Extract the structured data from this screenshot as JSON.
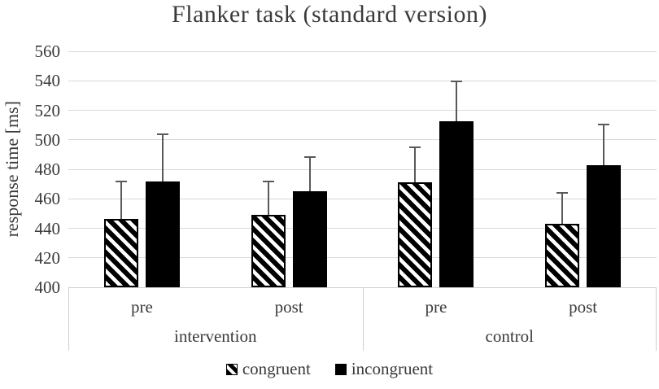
{
  "colors": {
    "bar_fill": "#000000",
    "hatch_stripe": "#000000",
    "gridline": "#d9d9d9",
    "error_bar": "#595959",
    "text": "#3a3a3a",
    "axis_box_border": "#cfcfcf"
  },
  "chart_data": {
    "type": "bar",
    "title": "Flanker task (standard version)",
    "xlabel": "",
    "ylabel": "response time [ms]",
    "ylim": [
      400,
      560
    ],
    "yticks": [
      400,
      420,
      440,
      460,
      480,
      500,
      520,
      540,
      560
    ],
    "grid": true,
    "legend_position": "bottom",
    "group_axis": [
      {
        "group": "intervention",
        "levels": [
          "pre",
          "post"
        ]
      },
      {
        "group": "control",
        "levels": [
          "pre",
          "post"
        ]
      }
    ],
    "categories": [
      "intervention pre",
      "intervention post",
      "control pre",
      "control post"
    ],
    "series": [
      {
        "name": "congruent",
        "style": "hatched",
        "values": [
          446.5,
          449,
          471,
          443
        ],
        "errors_plus": [
          25,
          23,
          24,
          21
        ]
      },
      {
        "name": "incongruent",
        "style": "solid",
        "values": [
          471.5,
          465,
          512.5,
          482.5
        ],
        "errors_plus": [
          32,
          23.5,
          27,
          28
        ]
      }
    ]
  }
}
